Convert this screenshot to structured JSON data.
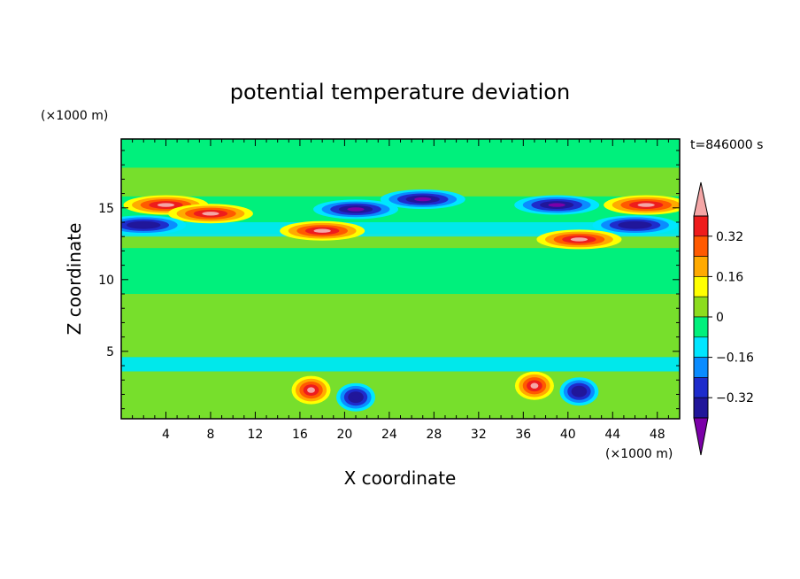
{
  "chart_data": {
    "type": "heatmap",
    "title": "potential temperature deviation",
    "xlabel": "X coordinate",
    "ylabel": "Z coordinate",
    "x_unit": "(×1000 m)",
    "y_unit": "(×1000 m)",
    "time_label": "t=846000 s",
    "xlim": [
      0,
      50
    ],
    "ylim": [
      0.3,
      19.8
    ],
    "x_ticks": [
      "4",
      "8",
      "12",
      "16",
      "20",
      "24",
      "28",
      "32",
      "36",
      "40",
      "44",
      "48"
    ],
    "y_ticks": [
      "5",
      "10",
      "15"
    ],
    "colorbar": {
      "levels": [
        -0.4,
        -0.32,
        -0.24,
        -0.16,
        -0.08,
        0,
        0.08,
        0.16,
        0.24,
        0.32,
        0.4
      ],
      "labels": [
        "0.32",
        "0.16",
        "0",
        "−0.16",
        "−0.32"
      ],
      "colors": [
        "#7b00a8",
        "#21169a",
        "#1e2ccc",
        "#0a8cff",
        "#00e6ff",
        "#00f07c",
        "#8cdc1e",
        "#ffff00",
        "#ffaa00",
        "#ff5a00",
        "#ee1c1c",
        "#f4a6a6"
      ]
    },
    "features": [
      {
        "x": 4,
        "z": 15.2,
        "value": 0.45
      },
      {
        "x": 47,
        "z": 15.2,
        "value": 0.45
      },
      {
        "x": 8,
        "z": 14.6,
        "value": 0.45
      },
      {
        "x": 2,
        "z": 13.8,
        "value": -0.4
      },
      {
        "x": 46,
        "z": 13.8,
        "value": -0.4
      },
      {
        "x": 21,
        "z": 14.9,
        "value": -0.45
      },
      {
        "x": 27,
        "z": 15.6,
        "value": -0.45
      },
      {
        "x": 39,
        "z": 15.2,
        "value": -0.45
      },
      {
        "x": 41,
        "z": 12.8,
        "value": 0.45
      },
      {
        "x": 18,
        "z": 13.4,
        "value": 0.45
      },
      {
        "x": 17,
        "z": 2.3,
        "value": 0.45
      },
      {
        "x": 37,
        "z": 2.6,
        "value": 0.45
      },
      {
        "x": 21,
        "z": 1.8,
        "value": -0.4
      },
      {
        "x": 41,
        "z": 2.2,
        "value": -0.4
      }
    ]
  }
}
